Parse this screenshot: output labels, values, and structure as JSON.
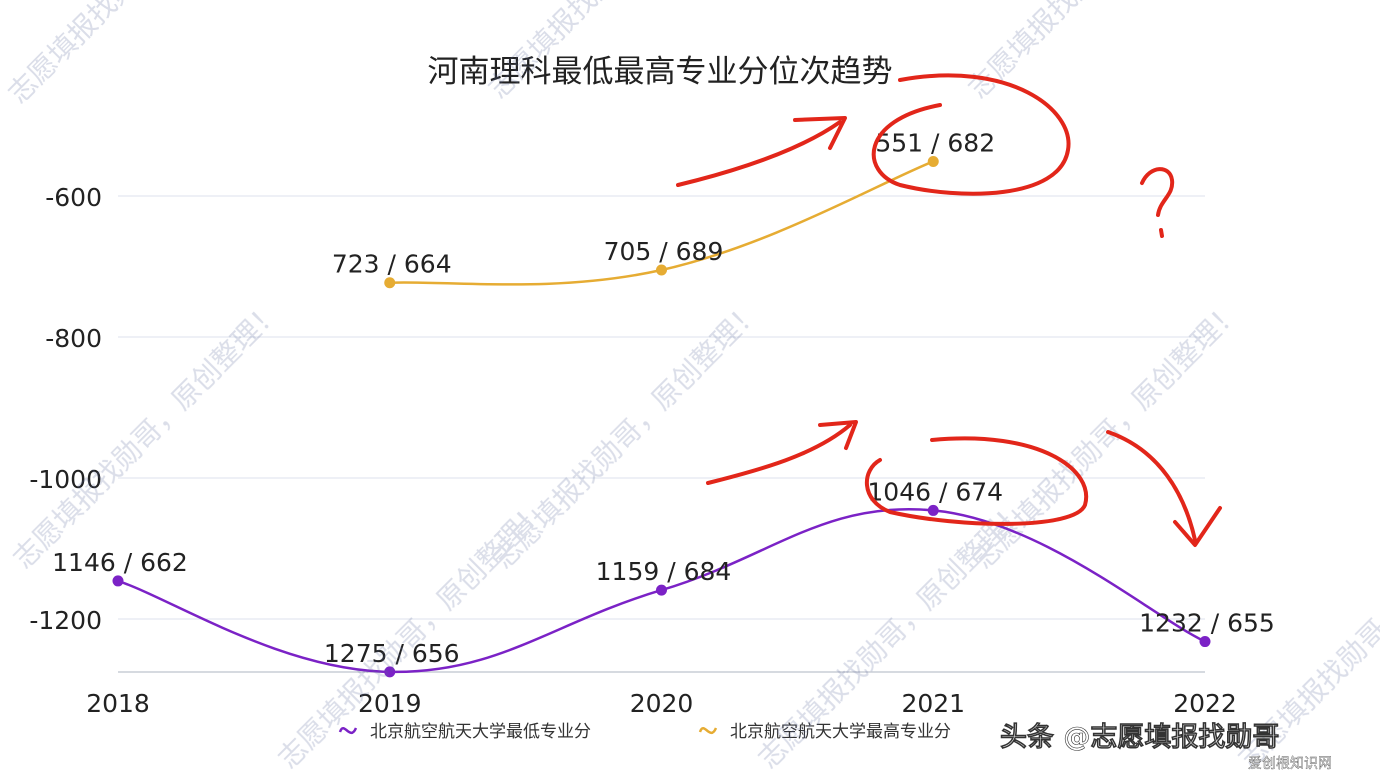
{
  "chart_data": {
    "type": "line",
    "title": "河南理科最低最高专业分位次趋势",
    "xlabel": "",
    "ylabel": "",
    "x": [
      "2018",
      "2019",
      "2020",
      "2021",
      "2022"
    ],
    "ylim": [
      -1290,
      -500
    ],
    "yticks": [
      -600,
      -800,
      -1000,
      -1200
    ],
    "grid": true,
    "legend_position": "bottom",
    "series": [
      {
        "name": "北京航空航天大学最低专业分",
        "color": "#7b22c6",
        "values": [
          -1146,
          -1275,
          -1159,
          -1046,
          -1232
        ],
        "labels": [
          "1146 / 662",
          "1275 / 656",
          "1159 / 684",
          "1046 / 674",
          "1232 / 655"
        ]
      },
      {
        "name": "北京航空航天大学最高专业分",
        "color": "#e6ac33",
        "values": [
          null,
          -723,
          -705,
          -551,
          null
        ],
        "labels": [
          "",
          "723 / 664",
          "705 / 689",
          "551 / 682",
          ""
        ]
      }
    ],
    "annotations": [
      "?"
    ]
  },
  "watermark": {
    "text_a": "志愿填报找勋哥，原创整理！",
    "credit": "头条 @志愿填报找勋哥",
    "corner": "爱创根知识网"
  }
}
